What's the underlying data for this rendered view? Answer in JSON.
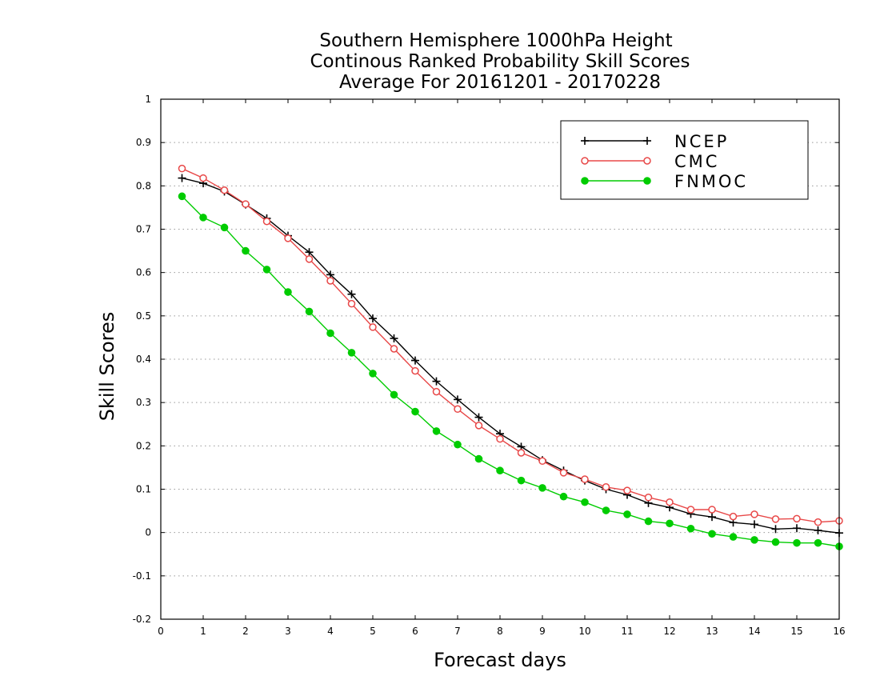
{
  "chart_data": {
    "type": "line",
    "title": [
      "Southern Hemisphere 1000hPa Height",
      "Continous Ranked Probability Skill Scores",
      "Average For 20161201 - 20170228"
    ],
    "xlabel": "Forecast days",
    "ylabel": "Skill Scores",
    "xlim": [
      0,
      16
    ],
    "ylim": [
      -0.2,
      1
    ],
    "xticks": [
      "0",
      "1",
      "2",
      "3",
      "4",
      "5",
      "6",
      "7",
      "8",
      "9",
      "10",
      "11",
      "12",
      "13",
      "14",
      "15",
      "16"
    ],
    "yticks": [
      "1",
      "0.9",
      "0.8",
      "0.7",
      "0.6",
      "0.5",
      "0.4",
      "0.3",
      "0.2",
      "0.1",
      "0",
      "-0.1",
      "-0.2"
    ],
    "grid": "horizontal dotted",
    "legend_position": "top-right",
    "x": [
      0.5,
      1,
      1.5,
      2,
      2.5,
      3,
      3.5,
      4,
      4.5,
      5,
      5.5,
      6,
      6.5,
      7,
      7.5,
      8,
      8.5,
      9,
      9.5,
      10,
      10.5,
      11,
      11.5,
      12,
      12.5,
      13,
      13.5,
      14,
      14.5,
      15,
      15.5,
      16
    ],
    "series": [
      {
        "name": "NCEP",
        "color": "#000000",
        "marker": "plus",
        "values": [
          0.818,
          0.806,
          0.787,
          0.757,
          0.725,
          0.685,
          0.647,
          0.595,
          0.55,
          0.494,
          0.448,
          0.397,
          0.349,
          0.307,
          0.266,
          0.228,
          0.198,
          0.167,
          0.143,
          0.12,
          0.1,
          0.087,
          0.068,
          0.058,
          0.043,
          0.036,
          0.023,
          0.019,
          0.008,
          0.01,
          0.005,
          -0.001
        ]
      },
      {
        "name": "CMC",
        "color": "#e84848",
        "marker": "open-circle",
        "values": [
          0.84,
          0.818,
          0.79,
          0.758,
          0.718,
          0.679,
          0.631,
          0.581,
          0.528,
          0.474,
          0.424,
          0.373,
          0.325,
          0.285,
          0.247,
          0.216,
          0.184,
          0.165,
          0.138,
          0.123,
          0.105,
          0.097,
          0.081,
          0.07,
          0.053,
          0.053,
          0.037,
          0.042,
          0.031,
          0.032,
          0.024,
          0.027
        ]
      },
      {
        "name": "FNMOC",
        "color": "#00cc00",
        "marker": "filled-circle",
        "values": [
          0.776,
          0.727,
          0.704,
          0.65,
          0.607,
          0.555,
          0.51,
          0.46,
          0.415,
          0.367,
          0.318,
          0.279,
          0.234,
          0.203,
          0.17,
          0.143,
          0.12,
          0.103,
          0.083,
          0.07,
          0.051,
          0.042,
          0.026,
          0.021,
          0.009,
          -0.003,
          -0.01,
          -0.017,
          -0.022,
          -0.024,
          -0.024,
          -0.032
        ]
      }
    ]
  }
}
